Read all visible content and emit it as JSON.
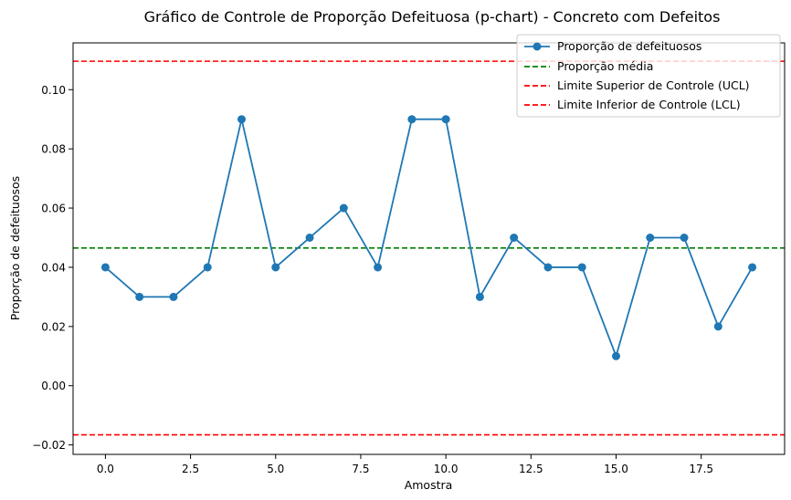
{
  "chart_data": {
    "type": "line",
    "title": "Gráfico de Controle de Proporção Defeituosa (p-chart) - Concreto com Defeitos",
    "xlabel": "Amostra",
    "ylabel": "Proporção de defeituosos",
    "xlim": [
      -0.95,
      19.95
    ],
    "ylim": [
      -0.0232,
      0.1158
    ],
    "x_ticks": [
      0,
      2.5,
      5,
      7.5,
      10,
      12.5,
      15,
      17.5
    ],
    "x_tick_labels": [
      "0.0",
      "2.5",
      "5.0",
      "7.5",
      "10.0",
      "12.5",
      "15.0",
      "17.5"
    ],
    "y_ticks": [
      -0.02,
      0,
      0.02,
      0.04,
      0.06,
      0.08,
      0.1
    ],
    "y_tick_labels": [
      "−0.02",
      "0.00",
      "0.02",
      "0.04",
      "0.06",
      "0.08",
      "0.10"
    ],
    "legend_position": "top-right",
    "series": [
      {
        "name": "Proporção de defeituosos",
        "kind": "line-marker",
        "color": "#1f77b4",
        "x": [
          0,
          1,
          2,
          3,
          4,
          5,
          6,
          7,
          8,
          9,
          10,
          11,
          12,
          13,
          14,
          15,
          16,
          17,
          18,
          19
        ],
        "values": [
          0.04,
          0.03,
          0.03,
          0.04,
          0.09,
          0.04,
          0.05,
          0.06,
          0.04,
          0.09,
          0.09,
          0.03,
          0.05,
          0.04,
          0.04,
          0.01,
          0.05,
          0.05,
          0.02,
          0.04
        ]
      }
    ],
    "hlines": [
      {
        "name": "Proporção média",
        "y": 0.0465,
        "color": "#008000"
      },
      {
        "name": "Limite Superior de Controle (UCL)",
        "y": 0.1096,
        "color": "#ff0000"
      },
      {
        "name": "Limite Inferior de Controle (LCL)",
        "y": -0.0166,
        "color": "#ff0000"
      }
    ]
  }
}
